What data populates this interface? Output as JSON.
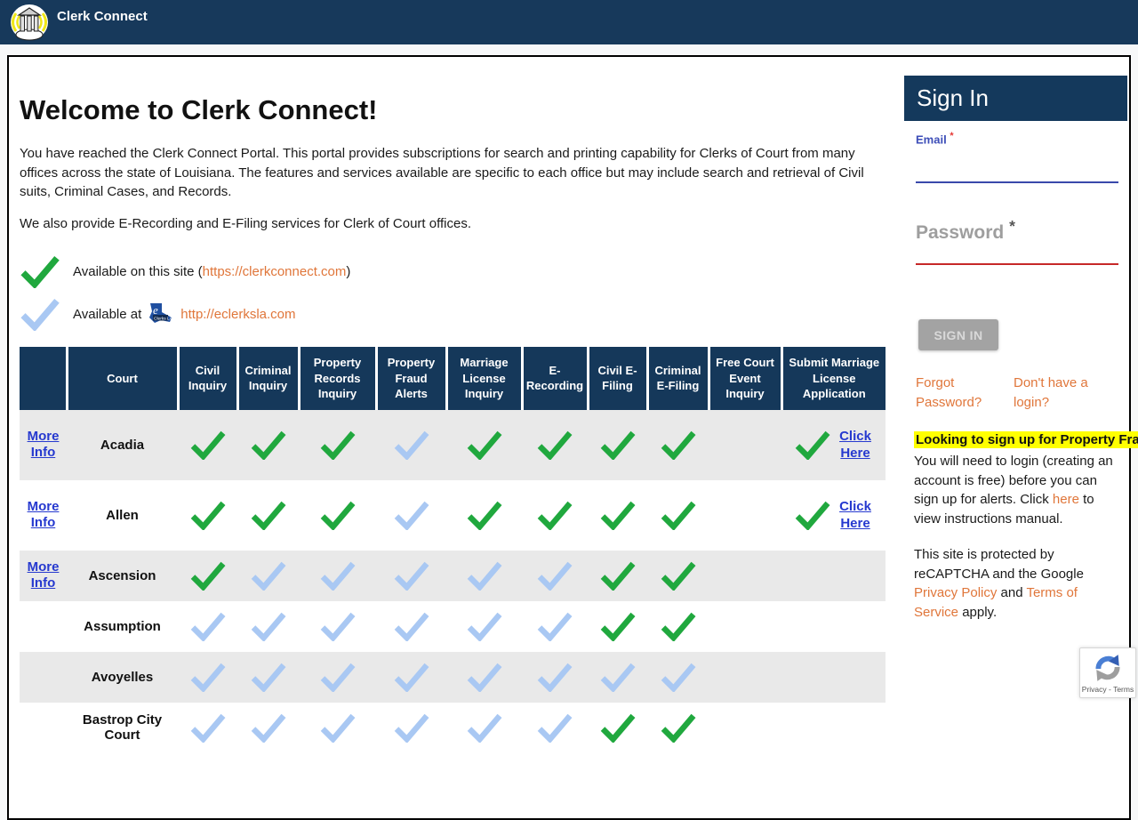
{
  "header": {
    "title": "Clerk Connect"
  },
  "main": {
    "welcome_title": "Welcome to Clerk Connect!",
    "intro": "You have reached the Clerk Connect Portal. This portal provides subscriptions for search and printing capability for Clerks of Court from many offices across the state of Louisiana. The features and services available are specific to each office but may include search and retrieval of Civil suits, Criminal Cases, and Records.",
    "intro2": "We also provide E-Recording and E-Filing services for Clerk of Court offices.",
    "legend_site": {
      "prefix": "Available on this site (",
      "url": "https://clerkconnect.com",
      "suffix": ")"
    },
    "legend_eclerks": {
      "prefix": "Available at",
      "url": "http://eclerksla.com"
    }
  },
  "table": {
    "columns": [
      "",
      "Court",
      "Civil Inquiry",
      "Criminal Inquiry",
      "Property Records Inquiry",
      "Property Fraud Alerts",
      "Marriage License Inquiry",
      "E-Recording",
      "Civil E-Filing",
      "Criminal E-Filing",
      "Free Court Event Inquiry",
      "Submit Marriage License Application"
    ],
    "more_info_label": "More Info",
    "click_here_label": "Click Here",
    "rows": [
      {
        "court": "Acadia",
        "more_info": true,
        "click_here": true,
        "checks": [
          "green",
          "green",
          "green",
          "blue",
          "green",
          "green",
          "green",
          "green",
          "none",
          "green"
        ]
      },
      {
        "court": "Allen",
        "more_info": true,
        "click_here": true,
        "checks": [
          "green",
          "green",
          "green",
          "blue",
          "green",
          "green",
          "green",
          "green",
          "none",
          "green"
        ]
      },
      {
        "court": "Ascension",
        "more_info": true,
        "click_here": false,
        "checks": [
          "green",
          "blue",
          "blue",
          "blue",
          "blue",
          "blue",
          "green",
          "green",
          "none",
          "none"
        ]
      },
      {
        "court": "Assumption",
        "more_info": false,
        "click_here": false,
        "checks": [
          "blue",
          "blue",
          "blue",
          "blue",
          "blue",
          "blue",
          "green",
          "green",
          "none",
          "none"
        ]
      },
      {
        "court": "Avoyelles",
        "more_info": false,
        "click_here": false,
        "checks": [
          "blue",
          "blue",
          "blue",
          "blue",
          "blue",
          "blue",
          "blue",
          "blue",
          "none",
          "none"
        ]
      },
      {
        "court": "Bastrop City Court",
        "more_info": false,
        "click_here": false,
        "checks": [
          "blue",
          "blue",
          "blue",
          "blue",
          "blue",
          "blue",
          "green",
          "green",
          "none",
          "none"
        ]
      }
    ]
  },
  "signin": {
    "title": "Sign In",
    "email_label": "Email",
    "password_label": "Password",
    "required_mark": "*",
    "button_label": "SIGN IN",
    "forgot_link": "Forgot Password?",
    "no_login_link": "Don't have a login?",
    "highlight_text": "Looking to sign up for Property Fra",
    "alerts_text_1": "You will need to login (creating an account is free) before you can sign up for alerts. Click ",
    "alerts_link": "here",
    "alerts_text_2": " to view instructions manual.",
    "protect_text_1": "This site is protected by reCAPTCHA and the Google ",
    "privacy_link": "Privacy Policy",
    "protect_text_2": " and ",
    "terms_link": "Terms of Service",
    "protect_text_3": " apply."
  },
  "recaptcha": {
    "badge_text": "Privacy - Terms"
  },
  "colors": {
    "navy": "#17395b",
    "table_header_navy": "#15385a",
    "check_green": "#20a83e",
    "check_blue": "#a9c8f3",
    "orange_link": "#e0763a",
    "blue_link": "#2639cf",
    "highlight_yellow": "#ffff00",
    "email_indigo": "#3d4eb8",
    "password_red": "#c62828"
  }
}
